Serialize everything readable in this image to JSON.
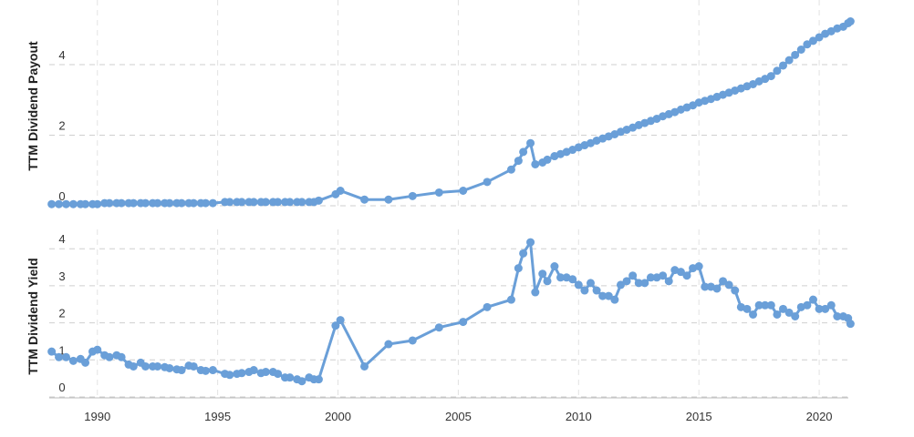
{
  "chart_data": [
    {
      "type": "line",
      "y_label": "TTM Dividend Payout",
      "color": "#6a9fd8",
      "grid": true,
      "ylim": [
        0,
        5.6
      ],
      "yticks": [
        0,
        2,
        4
      ],
      "xlim": [
        1988,
        2021.4
      ],
      "x": [
        1988.1,
        1988.4,
        1988.7,
        1989,
        1989.3,
        1989.5,
        1989.8,
        1990,
        1990.3,
        1990.5,
        1990.8,
        1991,
        1991.3,
        1991.5,
        1991.8,
        1992,
        1992.3,
        1992.5,
        1992.8,
        1993,
        1993.3,
        1993.5,
        1993.8,
        1994,
        1994.3,
        1994.5,
        1994.8,
        1995.3,
        1995.5,
        1995.8,
        1996,
        1996.3,
        1996.5,
        1996.8,
        1997,
        1997.3,
        1997.5,
        1997.8,
        1998,
        1998.3,
        1998.5,
        1998.8,
        1999,
        1999.2,
        1999.9,
        2000.1,
        2001.1,
        2002.1,
        2003.1,
        2004.2,
        2005.2,
        2006.2,
        2007.2,
        2007.5,
        2007.7,
        2008,
        2008.2,
        2008.5,
        2008.7,
        2009,
        2009.25,
        2009.5,
        2009.75,
        2010,
        2010.25,
        2010.5,
        2010.75,
        2011,
        2011.25,
        2011.5,
        2011.75,
        2012,
        2012.25,
        2012.5,
        2012.75,
        2013,
        2013.25,
        2013.5,
        2013.75,
        2014,
        2014.25,
        2014.5,
        2014.75,
        2015,
        2015.25,
        2015.5,
        2015.75,
        2016,
        2016.25,
        2016.5,
        2016.75,
        2017,
        2017.25,
        2017.5,
        2017.75,
        2018,
        2018.25,
        2018.5,
        2018.75,
        2019,
        2019.25,
        2019.5,
        2019.75,
        2020,
        2020.25,
        2020.5,
        2020.75,
        2021,
        2021.2,
        2021.3
      ],
      "values": [
        0.02,
        0.02,
        0.02,
        0.02,
        0.02,
        0.02,
        0.02,
        0.02,
        0.05,
        0.05,
        0.05,
        0.05,
        0.05,
        0.05,
        0.05,
        0.05,
        0.05,
        0.05,
        0.05,
        0.05,
        0.05,
        0.05,
        0.05,
        0.05,
        0.05,
        0.05,
        0.05,
        0.08,
        0.08,
        0.08,
        0.08,
        0.08,
        0.08,
        0.08,
        0.08,
        0.08,
        0.08,
        0.08,
        0.08,
        0.08,
        0.08,
        0.08,
        0.08,
        0.12,
        0.3,
        0.4,
        0.15,
        0.15,
        0.25,
        0.35,
        0.4,
        0.65,
        1.0,
        1.25,
        1.5,
        1.75,
        1.15,
        1.2,
        1.28,
        1.38,
        1.44,
        1.5,
        1.56,
        1.63,
        1.69,
        1.75,
        1.82,
        1.88,
        1.94,
        2.0,
        2.07,
        2.13,
        2.19,
        2.26,
        2.32,
        2.38,
        2.44,
        2.51,
        2.57,
        2.63,
        2.7,
        2.76,
        2.82,
        2.9,
        2.95,
        3.0,
        3.06,
        3.12,
        3.18,
        3.24,
        3.3,
        3.36,
        3.42,
        3.5,
        3.57,
        3.65,
        3.8,
        3.95,
        4.1,
        4.25,
        4.4,
        4.55,
        4.65,
        4.75,
        4.85,
        4.92,
        5.0,
        5.05,
        5.15,
        5.2
      ]
    },
    {
      "type": "line",
      "y_label": "TTM Dividend Yield",
      "color": "#6a9fd8",
      "grid": true,
      "ylim": [
        0,
        4.3
      ],
      "yticks": [
        0,
        1,
        2,
        3,
        4
      ],
      "xlim": [
        1988,
        2021.4
      ],
      "xticks": [
        1990,
        1995,
        2000,
        2005,
        2010,
        2015,
        2020
      ],
      "x": [
        1988.1,
        1988.4,
        1988.7,
        1989,
        1989.3,
        1989.5,
        1989.8,
        1990,
        1990.3,
        1990.5,
        1990.8,
        1991,
        1991.3,
        1991.5,
        1991.8,
        1992,
        1992.3,
        1992.5,
        1992.8,
        1993,
        1993.3,
        1993.5,
        1993.8,
        1994,
        1994.3,
        1994.5,
        1994.8,
        1995.3,
        1995.5,
        1995.8,
        1996,
        1996.3,
        1996.5,
        1996.8,
        1997,
        1997.3,
        1997.5,
        1997.8,
        1998,
        1998.3,
        1998.5,
        1998.8,
        1999,
        1999.2,
        1999.9,
        2000.1,
        2001.1,
        2002.1,
        2003.1,
        2004.2,
        2005.2,
        2006.2,
        2007.2,
        2007.5,
        2007.7,
        2008,
        2008.2,
        2008.5,
        2008.7,
        2009,
        2009.25,
        2009.5,
        2009.75,
        2010,
        2010.25,
        2010.5,
        2010.75,
        2011,
        2011.25,
        2011.5,
        2011.75,
        2012,
        2012.25,
        2012.5,
        2012.75,
        2013,
        2013.25,
        2013.5,
        2013.75,
        2014,
        2014.25,
        2014.5,
        2014.75,
        2015,
        2015.25,
        2015.5,
        2015.75,
        2016,
        2016.25,
        2016.5,
        2016.75,
        2017,
        2017.25,
        2017.5,
        2017.75,
        2018,
        2018.25,
        2018.5,
        2018.75,
        2019,
        2019.25,
        2019.5,
        2019.75,
        2020,
        2020.25,
        2020.5,
        2020.75,
        2021,
        2021.2,
        2021.3
      ],
      "values": [
        1.2,
        1.05,
        1.05,
        0.95,
        1.0,
        0.9,
        1.2,
        1.25,
        1.1,
        1.05,
        1.1,
        1.05,
        0.85,
        0.8,
        0.9,
        0.8,
        0.8,
        0.8,
        0.78,
        0.75,
        0.72,
        0.7,
        0.82,
        0.8,
        0.7,
        0.68,
        0.7,
        0.6,
        0.57,
        0.6,
        0.62,
        0.65,
        0.7,
        0.62,
        0.65,
        0.65,
        0.6,
        0.5,
        0.5,
        0.45,
        0.4,
        0.5,
        0.45,
        0.45,
        1.9,
        2.05,
        0.8,
        1.4,
        1.5,
        1.85,
        2.0,
        2.4,
        2.6,
        3.45,
        3.85,
        4.15,
        2.8,
        3.3,
        3.1,
        3.5,
        3.2,
        3.2,
        3.15,
        3.0,
        2.85,
        3.05,
        2.85,
        2.7,
        2.7,
        2.6,
        3.0,
        3.1,
        3.25,
        3.05,
        3.05,
        3.2,
        3.2,
        3.25,
        3.1,
        3.4,
        3.35,
        3.25,
        3.45,
        3.5,
        2.95,
        2.95,
        2.9,
        3.1,
        3.0,
        2.85,
        2.4,
        2.35,
        2.2,
        2.45,
        2.45,
        2.45,
        2.2,
        2.35,
        2.25,
        2.15,
        2.4,
        2.45,
        2.6,
        2.35,
        2.35,
        2.45,
        2.15,
        2.15,
        2.1,
        1.95
      ]
    }
  ]
}
